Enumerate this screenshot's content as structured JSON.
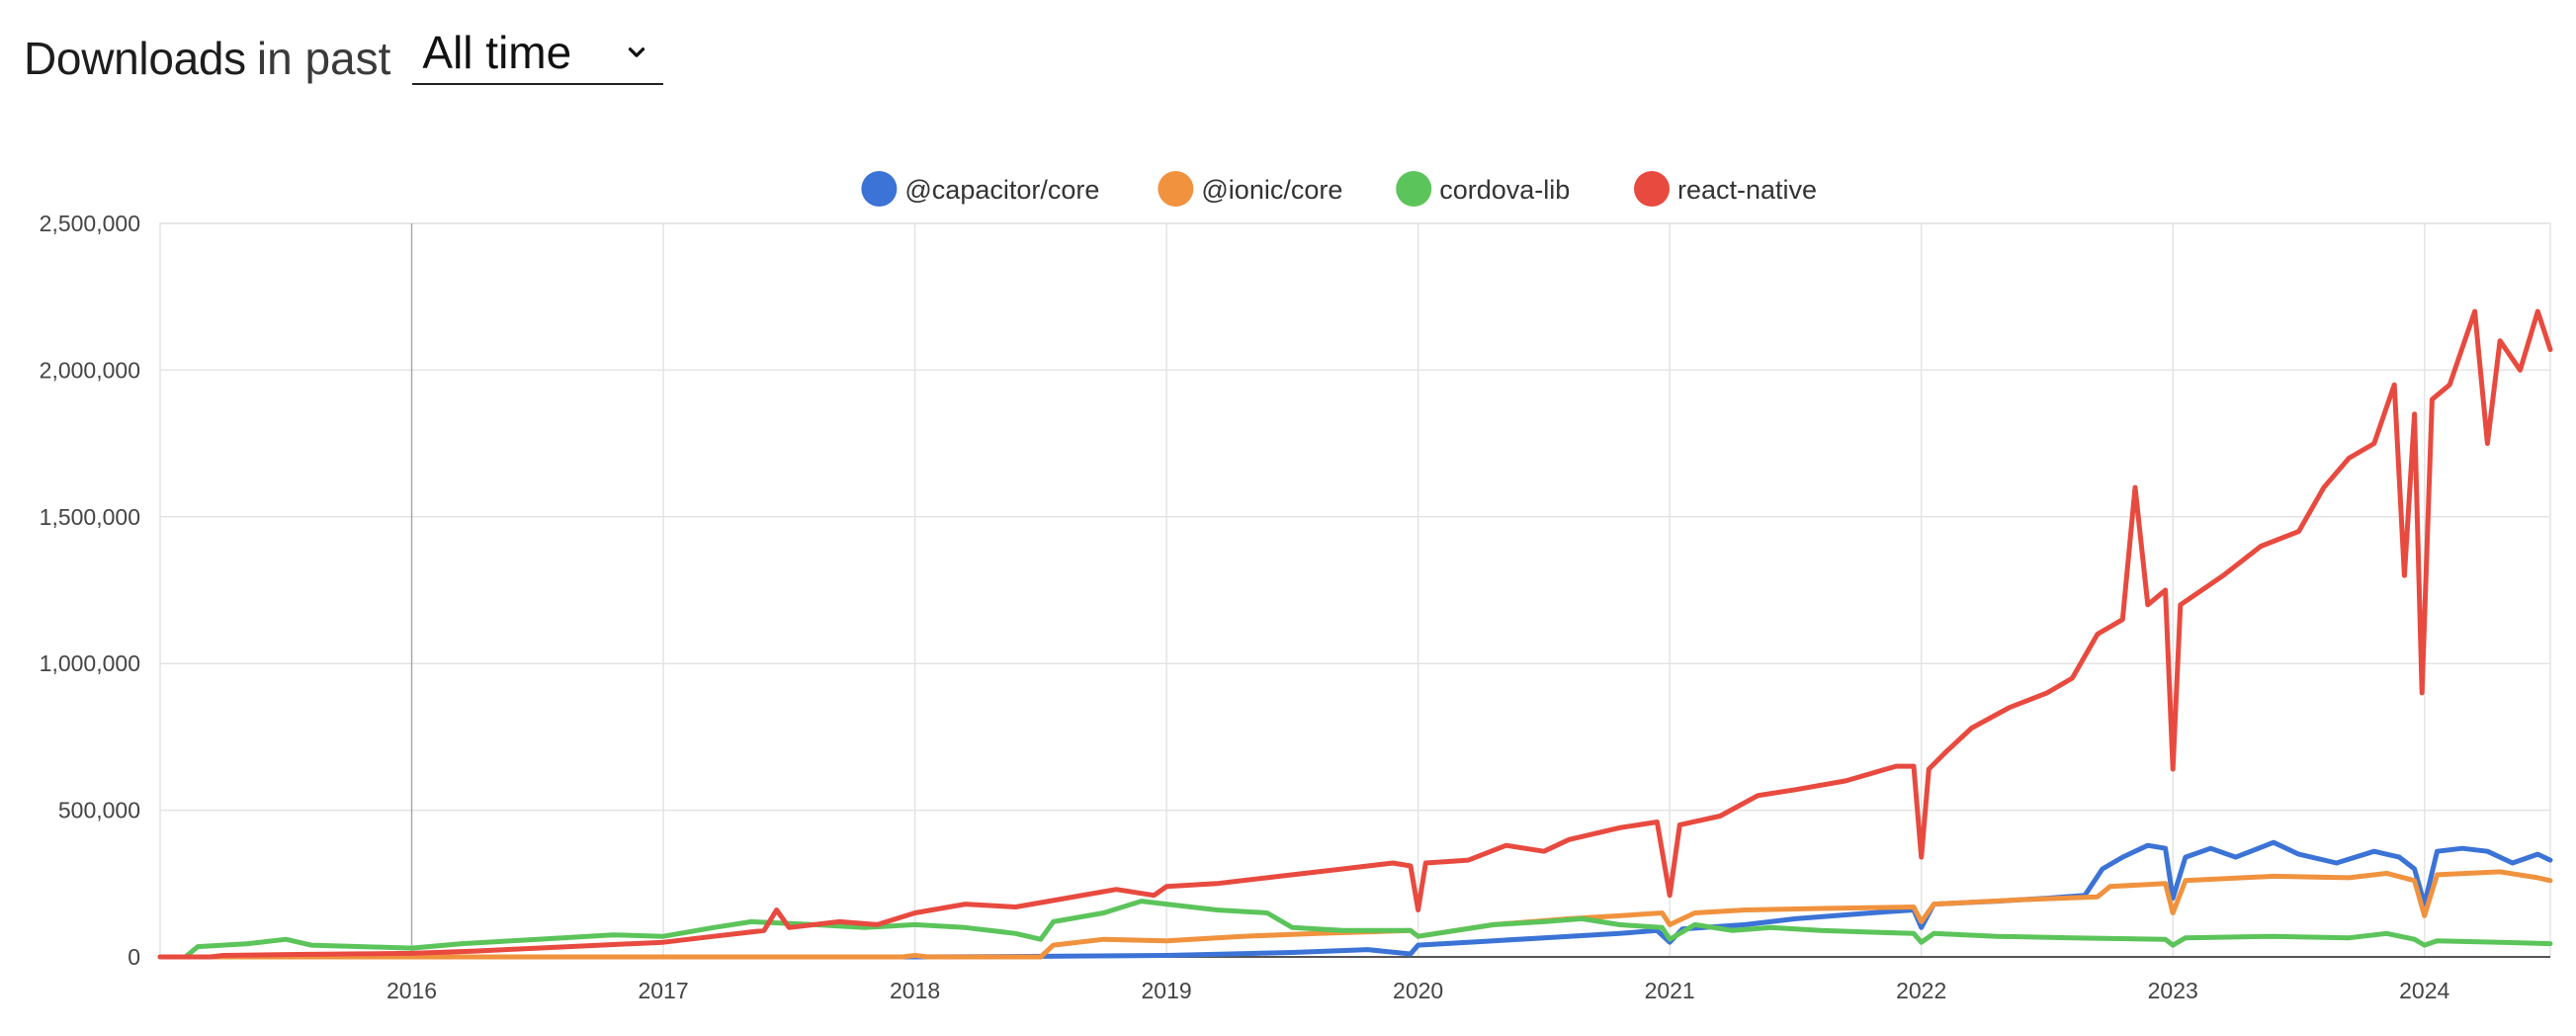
{
  "header": {
    "title_bold": "Downloads",
    "title_light": "in past",
    "period_select": {
      "value": "All time"
    }
  },
  "icons": {
    "dropdown": "chevron-down-icon"
  },
  "chart_data": {
    "type": "line",
    "title": "",
    "xlabel": "",
    "ylabel": "",
    "xlim": [
      2015.0,
      2024.5
    ],
    "ylim": [
      0,
      2500000
    ],
    "y_ticks": [
      0,
      500000,
      1000000,
      1500000,
      2000000,
      2500000
    ],
    "y_tick_labels": [
      "0",
      "500,000",
      "1,000,000",
      "1,500,000",
      "2,000,000",
      "2,500,000"
    ],
    "x_ticks": [
      2016,
      2017,
      2018,
      2019,
      2020,
      2021,
      2022,
      2023,
      2024
    ],
    "x_tick_labels": [
      "2016",
      "2017",
      "2018",
      "2019",
      "2020",
      "2021",
      "2022",
      "2023",
      "2024"
    ],
    "grid": true,
    "legend_position": "top-center",
    "series": [
      {
        "name": "@capacitor/core",
        "color": "#3b73d6",
        "points": [
          [
            2015.0,
            0
          ],
          [
            2016.0,
            0
          ],
          [
            2017.0,
            0
          ],
          [
            2018.0,
            0
          ],
          [
            2018.5,
            2000
          ],
          [
            2019.0,
            5000
          ],
          [
            2019.5,
            15000
          ],
          [
            2019.8,
            25000
          ],
          [
            2019.97,
            10000
          ],
          [
            2020.0,
            40000
          ],
          [
            2020.3,
            55000
          ],
          [
            2020.5,
            65000
          ],
          [
            2020.8,
            80000
          ],
          [
            2020.95,
            90000
          ],
          [
            2021.0,
            50000
          ],
          [
            2021.05,
            95000
          ],
          [
            2021.3,
            110000
          ],
          [
            2021.5,
            130000
          ],
          [
            2021.8,
            150000
          ],
          [
            2021.97,
            160000
          ],
          [
            2022.0,
            100000
          ],
          [
            2022.05,
            180000
          ],
          [
            2022.3,
            190000
          ],
          [
            2022.5,
            200000
          ],
          [
            2022.65,
            210000
          ],
          [
            2022.72,
            300000
          ],
          [
            2022.8,
            340000
          ],
          [
            2022.9,
            380000
          ],
          [
            2022.97,
            370000
          ],
          [
            2023.0,
            200000
          ],
          [
            2023.05,
            340000
          ],
          [
            2023.15,
            370000
          ],
          [
            2023.25,
            340000
          ],
          [
            2023.4,
            390000
          ],
          [
            2023.5,
            350000
          ],
          [
            2023.65,
            320000
          ],
          [
            2023.8,
            360000
          ],
          [
            2023.9,
            340000
          ],
          [
            2023.96,
            300000
          ],
          [
            2024.0,
            180000
          ],
          [
            2024.05,
            360000
          ],
          [
            2024.15,
            370000
          ],
          [
            2024.25,
            360000
          ],
          [
            2024.35,
            320000
          ],
          [
            2024.45,
            350000
          ],
          [
            2024.5,
            330000
          ]
        ]
      },
      {
        "name": "@ionic/core",
        "color": "#f0923e",
        "points": [
          [
            2015.0,
            0
          ],
          [
            2016.0,
            0
          ],
          [
            2017.0,
            0
          ],
          [
            2017.95,
            0
          ],
          [
            2018.0,
            5000
          ],
          [
            2018.05,
            0
          ],
          [
            2018.5,
            0
          ],
          [
            2018.55,
            40000
          ],
          [
            2018.75,
            60000
          ],
          [
            2019.0,
            55000
          ],
          [
            2019.3,
            70000
          ],
          [
            2019.6,
            80000
          ],
          [
            2019.97,
            90000
          ],
          [
            2020.0,
            70000
          ],
          [
            2020.3,
            110000
          ],
          [
            2020.6,
            130000
          ],
          [
            2020.8,
            140000
          ],
          [
            2020.97,
            150000
          ],
          [
            2021.0,
            110000
          ],
          [
            2021.1,
            150000
          ],
          [
            2021.3,
            160000
          ],
          [
            2021.6,
            165000
          ],
          [
            2021.97,
            170000
          ],
          [
            2022.0,
            120000
          ],
          [
            2022.05,
            180000
          ],
          [
            2022.4,
            195000
          ],
          [
            2022.7,
            205000
          ],
          [
            2022.75,
            240000
          ],
          [
            2022.97,
            250000
          ],
          [
            2023.0,
            150000
          ],
          [
            2023.05,
            260000
          ],
          [
            2023.4,
            275000
          ],
          [
            2023.7,
            270000
          ],
          [
            2023.85,
            285000
          ],
          [
            2023.96,
            260000
          ],
          [
            2024.0,
            140000
          ],
          [
            2024.05,
            280000
          ],
          [
            2024.3,
            290000
          ],
          [
            2024.45,
            270000
          ],
          [
            2024.5,
            260000
          ]
        ]
      },
      {
        "name": "cordova-lib",
        "color": "#5bc45a",
        "points": [
          [
            2015.0,
            0
          ],
          [
            2015.1,
            0
          ],
          [
            2015.15,
            35000
          ],
          [
            2015.35,
            45000
          ],
          [
            2015.5,
            60000
          ],
          [
            2015.6,
            40000
          ],
          [
            2015.8,
            35000
          ],
          [
            2016.0,
            30000
          ],
          [
            2016.2,
            45000
          ],
          [
            2016.5,
            60000
          ],
          [
            2016.8,
            75000
          ],
          [
            2017.0,
            70000
          ],
          [
            2017.2,
            100000
          ],
          [
            2017.35,
            120000
          ],
          [
            2017.6,
            110000
          ],
          [
            2017.8,
            100000
          ],
          [
            2018.0,
            110000
          ],
          [
            2018.2,
            100000
          ],
          [
            2018.4,
            80000
          ],
          [
            2018.5,
            60000
          ],
          [
            2018.55,
            120000
          ],
          [
            2018.75,
            150000
          ],
          [
            2018.9,
            190000
          ],
          [
            2019.0,
            180000
          ],
          [
            2019.2,
            160000
          ],
          [
            2019.4,
            150000
          ],
          [
            2019.5,
            100000
          ],
          [
            2019.7,
            90000
          ],
          [
            2019.97,
            90000
          ],
          [
            2020.0,
            70000
          ],
          [
            2020.3,
            110000
          ],
          [
            2020.5,
            120000
          ],
          [
            2020.65,
            130000
          ],
          [
            2020.8,
            110000
          ],
          [
            2020.97,
            100000
          ],
          [
            2021.0,
            60000
          ],
          [
            2021.1,
            110000
          ],
          [
            2021.25,
            90000
          ],
          [
            2021.4,
            100000
          ],
          [
            2021.6,
            90000
          ],
          [
            2021.97,
            80000
          ],
          [
            2022.0,
            50000
          ],
          [
            2022.05,
            80000
          ],
          [
            2022.3,
            70000
          ],
          [
            2022.6,
            65000
          ],
          [
            2022.97,
            60000
          ],
          [
            2023.0,
            40000
          ],
          [
            2023.05,
            65000
          ],
          [
            2023.4,
            70000
          ],
          [
            2023.7,
            65000
          ],
          [
            2023.85,
            80000
          ],
          [
            2023.96,
            60000
          ],
          [
            2024.0,
            40000
          ],
          [
            2024.05,
            55000
          ],
          [
            2024.3,
            50000
          ],
          [
            2024.5,
            45000
          ]
        ]
      },
      {
        "name": "react-native",
        "color": "#e84a3f",
        "points": [
          [
            2015.0,
            0
          ],
          [
            2015.2,
            0
          ],
          [
            2015.25,
            5000
          ],
          [
            2015.5,
            8000
          ],
          [
            2015.75,
            10000
          ],
          [
            2016.0,
            12000
          ],
          [
            2016.25,
            20000
          ],
          [
            2016.5,
            30000
          ],
          [
            2016.75,
            40000
          ],
          [
            2017.0,
            50000
          ],
          [
            2017.2,
            70000
          ],
          [
            2017.4,
            90000
          ],
          [
            2017.45,
            160000
          ],
          [
            2017.5,
            100000
          ],
          [
            2017.7,
            120000
          ],
          [
            2017.85,
            110000
          ],
          [
            2018.0,
            150000
          ],
          [
            2018.2,
            180000
          ],
          [
            2018.4,
            170000
          ],
          [
            2018.6,
            200000
          ],
          [
            2018.8,
            230000
          ],
          [
            2018.95,
            210000
          ],
          [
            2019.0,
            240000
          ],
          [
            2019.2,
            250000
          ],
          [
            2019.5,
            280000
          ],
          [
            2019.7,
            300000
          ],
          [
            2019.9,
            320000
          ],
          [
            2019.97,
            310000
          ],
          [
            2020.0,
            160000
          ],
          [
            2020.03,
            320000
          ],
          [
            2020.2,
            330000
          ],
          [
            2020.35,
            380000
          ],
          [
            2020.5,
            360000
          ],
          [
            2020.6,
            400000
          ],
          [
            2020.8,
            440000
          ],
          [
            2020.95,
            460000
          ],
          [
            2021.0,
            210000
          ],
          [
            2021.04,
            450000
          ],
          [
            2021.2,
            480000
          ],
          [
            2021.35,
            550000
          ],
          [
            2021.5,
            570000
          ],
          [
            2021.7,
            600000
          ],
          [
            2021.9,
            650000
          ],
          [
            2021.97,
            650000
          ],
          [
            2022.0,
            340000
          ],
          [
            2022.03,
            640000
          ],
          [
            2022.1,
            700000
          ],
          [
            2022.2,
            780000
          ],
          [
            2022.35,
            850000
          ],
          [
            2022.5,
            900000
          ],
          [
            2022.6,
            950000
          ],
          [
            2022.7,
            1100000
          ],
          [
            2022.8,
            1150000
          ],
          [
            2022.85,
            1600000
          ],
          [
            2022.9,
            1200000
          ],
          [
            2022.97,
            1250000
          ],
          [
            2023.0,
            640000
          ],
          [
            2023.03,
            1200000
          ],
          [
            2023.2,
            1300000
          ],
          [
            2023.35,
            1400000
          ],
          [
            2023.5,
            1450000
          ],
          [
            2023.6,
            1600000
          ],
          [
            2023.7,
            1700000
          ],
          [
            2023.8,
            1750000
          ],
          [
            2023.88,
            1950000
          ],
          [
            2023.92,
            1300000
          ],
          [
            2023.96,
            1850000
          ],
          [
            2023.99,
            900000
          ],
          [
            2024.03,
            1900000
          ],
          [
            2024.1,
            1950000
          ],
          [
            2024.2,
            2200000
          ],
          [
            2024.25,
            1750000
          ],
          [
            2024.3,
            2100000
          ],
          [
            2024.38,
            2000000
          ],
          [
            2024.45,
            2200000
          ],
          [
            2024.5,
            2070000
          ]
        ]
      }
    ]
  }
}
